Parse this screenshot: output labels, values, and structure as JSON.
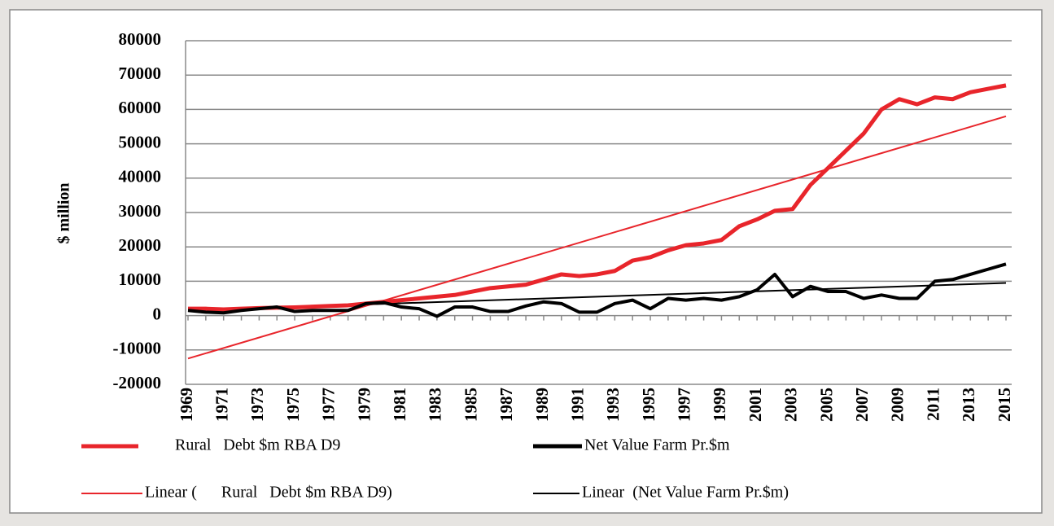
{
  "chart_data": {
    "type": "line",
    "y_label": "$ million",
    "categories": [
      "1969",
      null,
      "1971",
      null,
      "1973",
      null,
      "1975",
      null,
      "1977",
      null,
      "1979",
      null,
      "1981",
      null,
      "1983",
      null,
      "1985",
      null,
      "1987",
      null,
      "1989",
      null,
      "1991",
      null,
      "1993",
      null,
      "1995",
      null,
      "1997",
      null,
      "1999",
      null,
      "2001",
      null,
      "2003",
      null,
      "2005",
      null,
      "2007",
      null,
      "2009",
      null,
      "2011",
      null,
      "2013",
      null,
      "2015"
    ],
    "series": [
      {
        "name": "Rural   Debt $m RBA D9",
        "color": "#e8252b",
        "width": 5,
        "values": [
          2000,
          2000,
          1800,
          2000,
          2200,
          2300,
          2400,
          2600,
          2800,
          3000,
          3500,
          4000,
          4500,
          5000,
          5500,
          6000,
          7000,
          8000,
          8500,
          9000,
          10500,
          12000,
          11500,
          12000,
          13000,
          16000,
          17000,
          19000,
          20500,
          21000,
          22000,
          26000,
          28000,
          30500,
          31000,
          38000,
          43000,
          48000,
          53000,
          60000,
          63000,
          61500,
          63500,
          63000,
          65000,
          66000,
          67000
        ]
      },
      {
        "name": "Net Value Farm Pr.$m",
        "color": "#000000",
        "width": 4,
        "values": [
          1500,
          1000,
          800,
          1500,
          2000,
          2500,
          1200,
          1500,
          1500,
          1500,
          3500,
          3800,
          2500,
          2000,
          -200,
          2500,
          2500,
          1200,
          1200,
          2800,
          4000,
          3500,
          1000,
          1000,
          3500,
          4500,
          2000,
          5000,
          4500,
          5000,
          4500,
          5500,
          7500,
          12000,
          5500,
          8500,
          7000,
          7000,
          5000,
          6000,
          5000,
          5000,
          10000,
          10500,
          12000,
          13500,
          15000
        ]
      }
    ],
    "trendlines": [
      {
        "name": "Linear (      Rural   Debt $m RBA D9)",
        "color": "#e8252b",
        "start": -12500,
        "end": 58000
      },
      {
        "name": "Linear  (Net Value Farm Pr.$m)",
        "color": "#000000",
        "start": 1500,
        "end": 9500
      }
    ],
    "ylim": [
      -20000,
      80000
    ],
    "yticks": [
      -20000,
      -10000,
      0,
      10000,
      20000,
      30000,
      40000,
      50000,
      60000,
      70000,
      80000
    ],
    "grid": true
  }
}
